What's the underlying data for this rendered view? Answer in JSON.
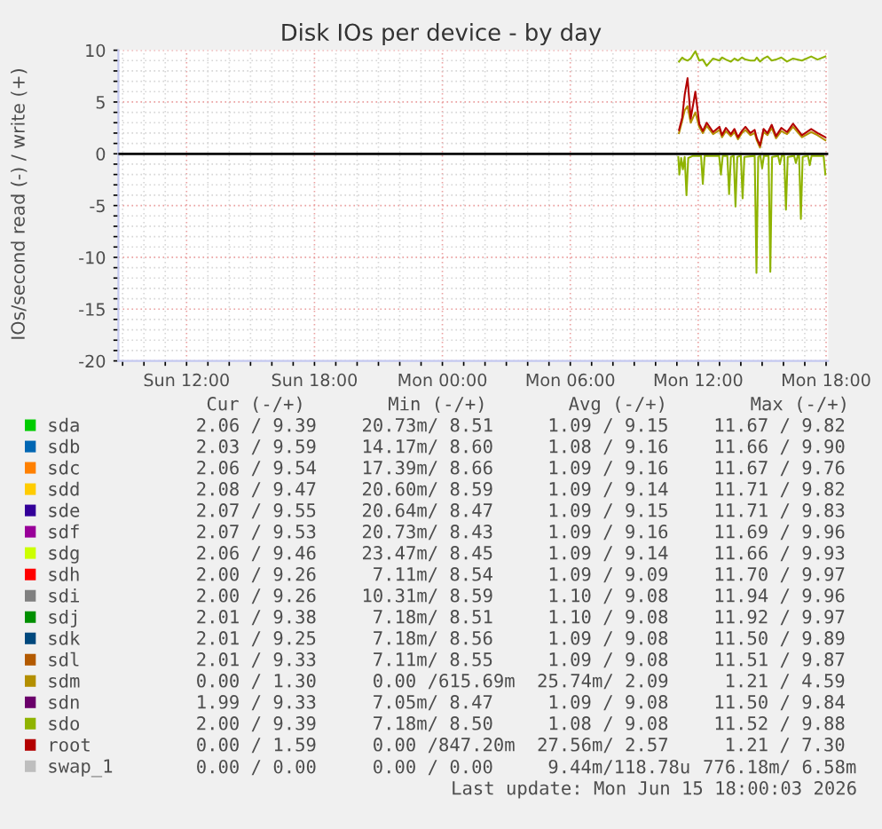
{
  "chart_data": {
    "type": "line",
    "title": "Disk IOs per device - by day",
    "ylabel": "IOs/second read (-) / write (+)",
    "xlim": [
      "2026-06-14T08:48",
      "2026-06-15T18:06"
    ],
    "ylim": [
      -20,
      10
    ],
    "xticks": [
      {
        "value": "2026-06-14T09:00",
        "label": null
      },
      {
        "value": "2026-06-14T10:00",
        "label": null
      },
      {
        "value": "2026-06-14T11:00",
        "label": null
      },
      {
        "value": "2026-06-14T12:00",
        "label": "Sun 12:00"
      },
      {
        "value": "2026-06-14T13:00",
        "label": null
      },
      {
        "value": "2026-06-14T14:00",
        "label": null
      },
      {
        "value": "2026-06-14T15:00",
        "label": null
      },
      {
        "value": "2026-06-14T16:00",
        "label": null
      },
      {
        "value": "2026-06-14T17:00",
        "label": null
      },
      {
        "value": "2026-06-14T18:00",
        "label": "Sun 18:00"
      },
      {
        "value": "2026-06-14T19:00",
        "label": null
      },
      {
        "value": "2026-06-14T20:00",
        "label": null
      },
      {
        "value": "2026-06-14T21:00",
        "label": null
      },
      {
        "value": "2026-06-14T22:00",
        "label": null
      },
      {
        "value": "2026-06-14T23:00",
        "label": null
      },
      {
        "value": "2026-06-15T00:00",
        "label": "Mon 00:00"
      },
      {
        "value": "2026-06-15T01:00",
        "label": null
      },
      {
        "value": "2026-06-15T02:00",
        "label": null
      },
      {
        "value": "2026-06-15T03:00",
        "label": null
      },
      {
        "value": "2026-06-15T04:00",
        "label": null
      },
      {
        "value": "2026-06-15T05:00",
        "label": null
      },
      {
        "value": "2026-06-15T06:00",
        "label": "Mon 06:00"
      },
      {
        "value": "2026-06-15T07:00",
        "label": null
      },
      {
        "value": "2026-06-15T08:00",
        "label": null
      },
      {
        "value": "2026-06-15T09:00",
        "label": null
      },
      {
        "value": "2026-06-15T10:00",
        "label": null
      },
      {
        "value": "2026-06-15T11:00",
        "label": null
      },
      {
        "value": "2026-06-15T12:00",
        "label": "Mon 12:00"
      },
      {
        "value": "2026-06-15T13:00",
        "label": null
      },
      {
        "value": "2026-06-15T14:00",
        "label": null
      },
      {
        "value": "2026-06-15T15:00",
        "label": null
      },
      {
        "value": "2026-06-15T16:00",
        "label": null
      },
      {
        "value": "2026-06-15T17:00",
        "label": null
      },
      {
        "value": "2026-06-15T18:00",
        "label": "Mon 18:00"
      }
    ],
    "yticks": [
      -20,
      {
        "value": -19,
        "label": null
      },
      {
        "value": -18,
        "label": null
      },
      {
        "value": -17,
        "label": null
      },
      {
        "value": -16,
        "label": null
      },
      -15,
      {
        "value": -14,
        "label": null
      },
      {
        "value": -13,
        "label": null
      },
      {
        "value": -12,
        "label": null
      },
      {
        "value": -11,
        "label": null
      },
      -10,
      {
        "value": -9,
        "label": null
      },
      {
        "value": -8,
        "label": null
      },
      {
        "value": -7,
        "label": null
      },
      {
        "value": -6,
        "label": null
      },
      -5,
      {
        "value": -4,
        "label": null
      },
      {
        "value": -3,
        "label": null
      },
      {
        "value": -2,
        "label": null
      },
      {
        "value": -1,
        "label": null
      },
      0,
      {
        "value": 1,
        "label": null
      },
      {
        "value": 2,
        "label": null
      },
      {
        "value": 3,
        "label": null
      },
      {
        "value": 4,
        "label": null
      },
      5,
      {
        "value": 6,
        "label": null
      },
      {
        "value": 7,
        "label": null
      },
      {
        "value": 8,
        "label": null
      },
      {
        "value": 9,
        "label": null
      },
      10
    ],
    "grid": true,
    "legend": "bottom",
    "ref_lines": [
      {
        "axis": "y",
        "value": 0,
        "color": "#000000"
      }
    ],
    "x": [
      "2026-06-15T11:06",
      "2026-06-15T11:15",
      "2026-06-15T11:22",
      "2026-06-15T11:30",
      "2026-06-15T11:39",
      "2026-06-15T11:52",
      "2026-06-15T12:03",
      "2026-06-15T12:13",
      "2026-06-15T12:24",
      "2026-06-15T12:42",
      "2026-06-15T13:00",
      "2026-06-15T13:07",
      "2026-06-15T13:18",
      "2026-06-15T13:32",
      "2026-06-15T13:42",
      "2026-06-15T13:52",
      "2026-06-15T14:03",
      "2026-06-15T14:13",
      "2026-06-15T14:27",
      "2026-06-15T14:39",
      "2026-06-15T14:45",
      "2026-06-15T14:54",
      "2026-06-15T15:04",
      "2026-06-15T15:15",
      "2026-06-15T15:27",
      "2026-06-15T15:39",
      "2026-06-15T15:54",
      "2026-06-15T16:10",
      "2026-06-15T16:27",
      "2026-06-15T16:52",
      "2026-06-15T17:18",
      "2026-06-15T17:36",
      "2026-06-15T17:58"
    ],
    "series": [
      {
        "name": "sda",
        "color": "#00cc00",
        "values": [
          null,
          null,
          null,
          null,
          null,
          null,
          null,
          null,
          null,
          null,
          null,
          null,
          null,
          null,
          null,
          null,
          null,
          null,
          null,
          null,
          null,
          null,
          null,
          null,
          null,
          null,
          null,
          null,
          null,
          null,
          null,
          null,
          null
        ]
      },
      {
        "name": "sdb",
        "color": "#0066b3",
        "values": [
          null,
          null,
          null,
          null,
          null,
          null,
          null,
          null,
          null,
          null,
          null,
          null,
          null,
          null,
          null,
          null,
          null,
          null,
          null,
          null,
          null,
          null,
          null,
          null,
          null,
          null,
          null,
          null,
          null,
          null,
          null,
          null,
          null
        ]
      },
      {
        "name": "sdc",
        "color": "#ff8000",
        "values": [
          null,
          null,
          null,
          null,
          null,
          null,
          null,
          null,
          null,
          null,
          null,
          null,
          null,
          null,
          null,
          null,
          null,
          null,
          null,
          null,
          null,
          null,
          null,
          null,
          null,
          null,
          null,
          null,
          null,
          null,
          null,
          null,
          null
        ]
      },
      {
        "name": "sdd",
        "color": "#ffcc00",
        "values": [
          null,
          null,
          null,
          null,
          null,
          null,
          null,
          null,
          null,
          null,
          null,
          null,
          null,
          null,
          null,
          null,
          null,
          null,
          null,
          null,
          null,
          null,
          null,
          null,
          null,
          null,
          null,
          null,
          null,
          null,
          null,
          null,
          null
        ]
      },
      {
        "name": "sde",
        "color": "#330099",
        "values": [
          null,
          null,
          null,
          null,
          null,
          null,
          null,
          null,
          null,
          null,
          null,
          null,
          null,
          null,
          null,
          null,
          null,
          null,
          null,
          null,
          null,
          null,
          null,
          null,
          null,
          null,
          null,
          null,
          null,
          null,
          null,
          null,
          null
        ]
      },
      {
        "name": "sdf",
        "color": "#990099",
        "values": [
          null,
          null,
          null,
          null,
          null,
          null,
          null,
          null,
          null,
          null,
          null,
          null,
          null,
          null,
          null,
          null,
          null,
          null,
          null,
          null,
          null,
          null,
          null,
          null,
          null,
          null,
          null,
          null,
          null,
          null,
          null,
          null,
          null
        ]
      },
      {
        "name": "sdg",
        "color": "#ccff00",
        "values": [
          null,
          null,
          null,
          null,
          null,
          null,
          null,
          null,
          null,
          null,
          null,
          null,
          null,
          null,
          null,
          null,
          null,
          null,
          null,
          null,
          null,
          null,
          null,
          null,
          null,
          null,
          null,
          null,
          null,
          null,
          null,
          null,
          null
        ]
      },
      {
        "name": "sdh",
        "color": "#ff0000",
        "values": [
          null,
          null,
          null,
          null,
          null,
          null,
          null,
          null,
          null,
          null,
          null,
          null,
          null,
          null,
          null,
          null,
          null,
          null,
          null,
          null,
          null,
          null,
          null,
          null,
          null,
          null,
          null,
          null,
          null,
          null,
          null,
          null,
          null
        ]
      },
      {
        "name": "sdi",
        "color": "#808080",
        "values": [
          null,
          null,
          null,
          null,
          null,
          null,
          null,
          null,
          null,
          null,
          null,
          null,
          null,
          null,
          null,
          null,
          null,
          null,
          null,
          null,
          null,
          null,
          null,
          null,
          null,
          null,
          null,
          null,
          null,
          null,
          null,
          null,
          null
        ]
      },
      {
        "name": "sdj",
        "color": "#008f00",
        "values": [
          null,
          null,
          null,
          null,
          null,
          null,
          null,
          null,
          null,
          null,
          null,
          null,
          null,
          null,
          null,
          null,
          null,
          null,
          null,
          null,
          null,
          null,
          null,
          null,
          null,
          null,
          null,
          null,
          null,
          null,
          null,
          null,
          null
        ]
      },
      {
        "name": "sdk",
        "color": "#00487d",
        "values": [
          null,
          null,
          null,
          null,
          null,
          null,
          null,
          null,
          null,
          null,
          null,
          null,
          null,
          null,
          null,
          null,
          null,
          null,
          null,
          null,
          null,
          null,
          null,
          null,
          null,
          null,
          null,
          null,
          null,
          null,
          null,
          null,
          null
        ]
      },
      {
        "name": "sdl",
        "color": "#b35a00",
        "values": [
          null,
          null,
          null,
          null,
          null,
          null,
          null,
          null,
          null,
          null,
          null,
          null,
          null,
          null,
          null,
          null,
          null,
          null,
          null,
          null,
          null,
          null,
          null,
          null,
          null,
          null,
          null,
          null,
          null,
          null,
          null,
          null,
          null
        ]
      },
      {
        "name": "sdm",
        "color": "#b38f00",
        "values": [
          2.0,
          3.2,
          4.2,
          4.6,
          3.0,
          4.0,
          2.6,
          2.0,
          2.7,
          1.9,
          2.3,
          1.6,
          2.2,
          1.7,
          2.1,
          1.4,
          2.0,
          2.3,
          1.8,
          2.0,
          1.3,
          0.6,
          2.1,
          1.8,
          2.5,
          1.5,
          2.2,
          1.9,
          2.6,
          1.6,
          2.1,
          1.8,
          1.3
        ]
      },
      {
        "name": "sdn",
        "color": "#6b006b",
        "values": [
          null,
          null,
          null,
          null,
          null,
          null,
          null,
          null,
          null,
          null,
          null,
          null,
          null,
          null,
          null,
          null,
          null,
          null,
          null,
          null,
          null,
          null,
          null,
          null,
          null,
          null,
          null,
          null,
          null,
          null,
          null,
          null,
          null
        ]
      },
      {
        "color": "#8fb300",
        "x": [
          "2026-06-15T11:04",
          "2026-06-15T11:07",
          "2026-06-15T11:12",
          "2026-06-15T11:17",
          "2026-06-15T11:22",
          "2026-06-15T11:27",
          "2026-06-15T11:32",
          "2026-06-15T11:45",
          "2026-06-15T12:08",
          "2026-06-15T12:13",
          "2026-06-15T12:18",
          "2026-06-15T12:59",
          "2026-06-15T13:04",
          "2026-06-15T13:09",
          "2026-06-15T13:22",
          "2026-06-15T13:27",
          "2026-06-15T13:32",
          "2026-06-15T13:40",
          "2026-06-15T13:45",
          "2026-06-15T13:50",
          "2026-06-15T14:00",
          "2026-06-15T14:05",
          "2026-06-15T14:10",
          "2026-06-15T14:39",
          "2026-06-15T14:44",
          "2026-06-15T14:49",
          "2026-06-15T14:55",
          "2026-06-15T15:00",
          "2026-06-15T15:05",
          "2026-06-15T15:18",
          "2026-06-15T15:23",
          "2026-06-15T15:28",
          "2026-06-15T15:45",
          "2026-06-15T15:50",
          "2026-06-15T15:55",
          "2026-06-15T16:02",
          "2026-06-15T16:07",
          "2026-06-15T16:12",
          "2026-06-15T16:30",
          "2026-06-15T16:35",
          "2026-06-15T16:40",
          "2026-06-15T16:44",
          "2026-06-15T16:49",
          "2026-06-15T16:54",
          "2026-06-15T17:09",
          "2026-06-15T17:14",
          "2026-06-15T17:19",
          "2026-06-15T17:53",
          "2026-06-15T17:58"
        ],
        "values": [
          -0.3,
          -2.0,
          -0.4,
          -1.5,
          -0.3,
          -4.0,
          -0.4,
          -0.2,
          -0.2,
          -2.9,
          -0.2,
          -0.2,
          -2.0,
          -0.2,
          -0.2,
          -3.9,
          -0.3,
          -0.2,
          -5.1,
          -0.3,
          -0.2,
          -4.3,
          -0.3,
          -0.2,
          -11.5,
          -0.3,
          -0.2,
          -1.4,
          -0.2,
          -0.2,
          -11.4,
          -0.3,
          -0.2,
          -1.0,
          -0.2,
          -0.2,
          -5.4,
          -0.3,
          -0.2,
          -0.9,
          -0.2,
          -0.2,
          -6.3,
          -0.3,
          -0.2,
          -1.1,
          -0.2,
          -0.2,
          -2.0
        ]
      },
      {
        "name": "sdo",
        "color": "#8fb300",
        "values": [
          8.9,
          9.3,
          9.1,
          9.0,
          9.2,
          9.9,
          9.0,
          9.1,
          8.5,
          9.2,
          9.0,
          9.3,
          9.1,
          8.9,
          9.2,
          9.0,
          9.3,
          9.1,
          9.0,
          9.0,
          9.3,
          8.9,
          9.2,
          9.4,
          9.0,
          9.1,
          9.3,
          8.9,
          9.2,
          9.0,
          9.4,
          9.1,
          9.4
        ]
      },
      {
        "name": "root",
        "color": "#b30000",
        "values": [
          2.3,
          3.5,
          5.7,
          7.3,
          3.4,
          6.0,
          2.9,
          2.2,
          3.0,
          2.1,
          2.6,
          1.8,
          2.5,
          1.9,
          2.4,
          1.6,
          2.2,
          2.6,
          2.0,
          2.3,
          1.5,
          0.8,
          2.4,
          2.0,
          2.8,
          1.7,
          2.5,
          2.1,
          2.9,
          1.8,
          2.4,
          2.0,
          1.6
        ]
      },
      {
        "name": "swap_1",
        "color": "#bebebe",
        "values": [
          null,
          null,
          null,
          null,
          null,
          null,
          null,
          null,
          null,
          null,
          null,
          null,
          null,
          null,
          null,
          null,
          null,
          null,
          null,
          null,
          null,
          null,
          null,
          null,
          null,
          null,
          null,
          null,
          null,
          null,
          null,
          null,
          null
        ]
      }
    ],
    "annotations": [
      "Cur (-/+)",
      "Min (-/+)",
      "Avg (-/+)",
      "Max (-/+)",
      "2.06 / 9.39",
      "20.73m/ 8.51",
      "1.09 / 9.15",
      "11.67 / 9.82",
      "2.03 / 9.59",
      "14.17m/ 8.60",
      "1.08 / 9.16",
      "11.66 / 9.90",
      "2.06 / 9.54",
      "17.39m/ 8.66",
      "1.09 / 9.16",
      "11.67 / 9.76",
      "2.08 / 9.47",
      "20.60m/ 8.59",
      "1.09 / 9.14",
      "11.71 / 9.82",
      "2.07 / 9.55",
      "20.64m/ 8.47",
      "1.09 / 9.15",
      "11.71 / 9.83",
      "2.07 / 9.53",
      "20.73m/ 8.43",
      "1.09 / 9.16",
      "11.69 / 9.96",
      "2.06 / 9.46",
      "23.47m/ 8.45",
      "1.09 / 9.14",
      "11.66 / 9.93",
      "2.00 / 9.26",
      "7.11m/ 8.54",
      "1.09 / 9.09",
      "11.70 / 9.97",
      "2.00 / 9.26",
      "10.31m/ 8.59",
      "1.10 / 9.08",
      "11.94 / 9.96",
      "2.01 / 9.38",
      "7.18m/ 8.51",
      "1.10 / 9.08",
      "11.92 / 9.97",
      "2.01 / 9.25",
      "7.18m/ 8.56",
      "1.09 / 9.08",
      "11.50 / 9.89",
      "2.01 / 9.33",
      "7.11m/ 8.55",
      "1.09 / 9.08",
      "11.51 / 9.87",
      "0.00 / 1.30",
      "0.00 /615.69m",
      "25.74m/ 2.09",
      "1.21 / 4.59",
      "1.99 / 9.33",
      "7.05m/ 8.47",
      "1.09 / 9.08",
      "11.50 / 9.84",
      "2.00 / 9.39",
      "7.18m/ 8.50",
      "1.08 / 9.08",
      "11.52 / 9.88",
      "0.00 / 1.59",
      "0.00 /847.20m",
      "27.56m/ 2.57",
      "1.21 / 7.30",
      "0.00 / 0.00",
      "0.00 / 0.00",
      "9.44m/118.78u",
      "776.18m/ 6.58m",
      "Last update: Mon Jun 15 18:00:03 2026"
    ]
  }
}
